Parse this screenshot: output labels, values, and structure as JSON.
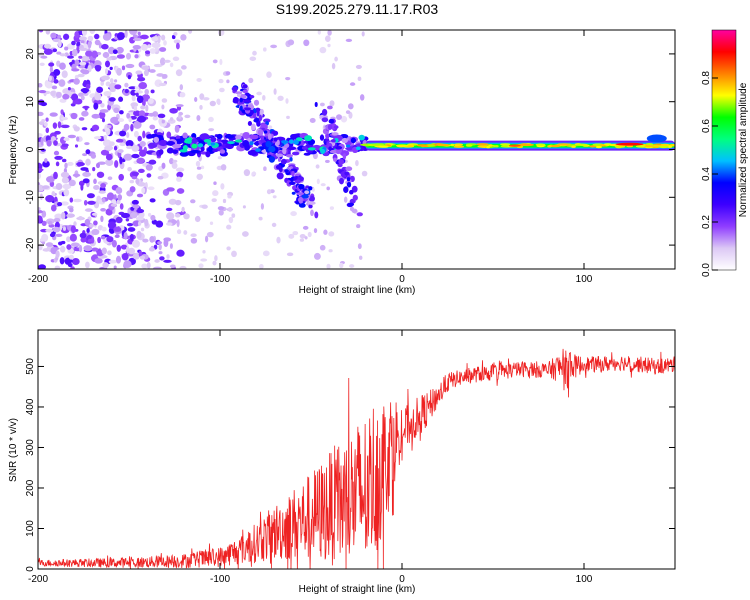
{
  "title": "S199.2025.279.11.17.R03",
  "chart_data": [
    {
      "type": "heatmap",
      "name": "spectrogram",
      "xlabel": "Height of straight line (km)",
      "ylabel": "Frequency (Hz)",
      "xlim": [
        -200,
        150
      ],
      "ylim": [
        -25,
        25
      ],
      "xticks": [
        -200,
        -100,
        0,
        100
      ],
      "xtick_labels": [
        "-200",
        "-100",
        "0",
        "100"
      ],
      "yticks": [
        -20,
        -10,
        0,
        10,
        20
      ],
      "ytick_labels": [
        "-20",
        "-10",
        "0",
        "10",
        "20"
      ],
      "colorbar": {
        "label": "Normalized spectral amplitude",
        "range": [
          0,
          1
        ],
        "ticks": [
          0,
          0.2,
          0.4,
          0.6,
          0.8
        ],
        "tick_labels": [
          "0.0",
          "0.2",
          "0.4",
          "0.6",
          "0.8"
        ],
        "colors": [
          "#ffffff",
          "#dcc8f5",
          "#8f3dff",
          "#3c00ff",
          "#0000ff",
          "#00c0ff",
          "#00ff80",
          "#00ff00",
          "#ffff00",
          "#ff8000",
          "#ff0000",
          "#ff00a0"
        ]
      },
      "features": {
        "noise_region_x": [
          -200,
          -140
        ],
        "main_line": {
          "x": [
            -20,
            150
          ],
          "freq_hz": 0.8,
          "peak_amplitude": 0.9
        },
        "diagonal_structure": {
          "x": [
            -90,
            -50
          ],
          "freq_hz": [
            12,
            -12
          ]
        },
        "cluster_x": [
          -140,
          -20
        ],
        "cluster_freq_hz": 1
      }
    },
    {
      "type": "line",
      "name": "snr",
      "xlabel": "Height of straight line (km)",
      "ylabel": "SNR (10 * v/v)",
      "xlim": [
        -200,
        150
      ],
      "ylim": [
        0,
        590
      ],
      "xticks": [
        -200,
        -100,
        0,
        100
      ],
      "xtick_labels": [
        "-200",
        "-100",
        "0",
        "100"
      ],
      "yticks": [
        0,
        100,
        200,
        300,
        400,
        500
      ],
      "ytick_labels": [
        "0",
        "100",
        "200",
        "300",
        "400",
        "500"
      ],
      "color": "#ee2222",
      "x": [
        -200,
        -180,
        -160,
        -140,
        -120,
        -100,
        -90,
        -80,
        -70,
        -60,
        -50,
        -40,
        -30,
        -20,
        -15,
        -10,
        -5,
        0,
        5,
        10,
        15,
        20,
        25,
        30,
        40,
        50,
        60,
        70,
        80,
        88,
        90,
        92,
        95,
        100,
        110,
        120,
        130,
        140,
        150
      ],
      "values": [
        15,
        15,
        15,
        17,
        20,
        30,
        45,
        65,
        90,
        110,
        130,
        150,
        170,
        190,
        230,
        260,
        320,
        340,
        360,
        380,
        400,
        430,
        460,
        470,
        480,
        485,
        490,
        495,
        490,
        500,
        480,
        510,
        500,
        505,
        505,
        510,
        505,
        500,
        505
      ],
      "spread": [
        8,
        10,
        12,
        14,
        18,
        25,
        35,
        50,
        70,
        90,
        110,
        140,
        170,
        200,
        200,
        180,
        120,
        60,
        50,
        50,
        40,
        30,
        25,
        20,
        20,
        20,
        20,
        20,
        20,
        40,
        60,
        40,
        30,
        20,
        20,
        20,
        20,
        20,
        20
      ]
    }
  ]
}
